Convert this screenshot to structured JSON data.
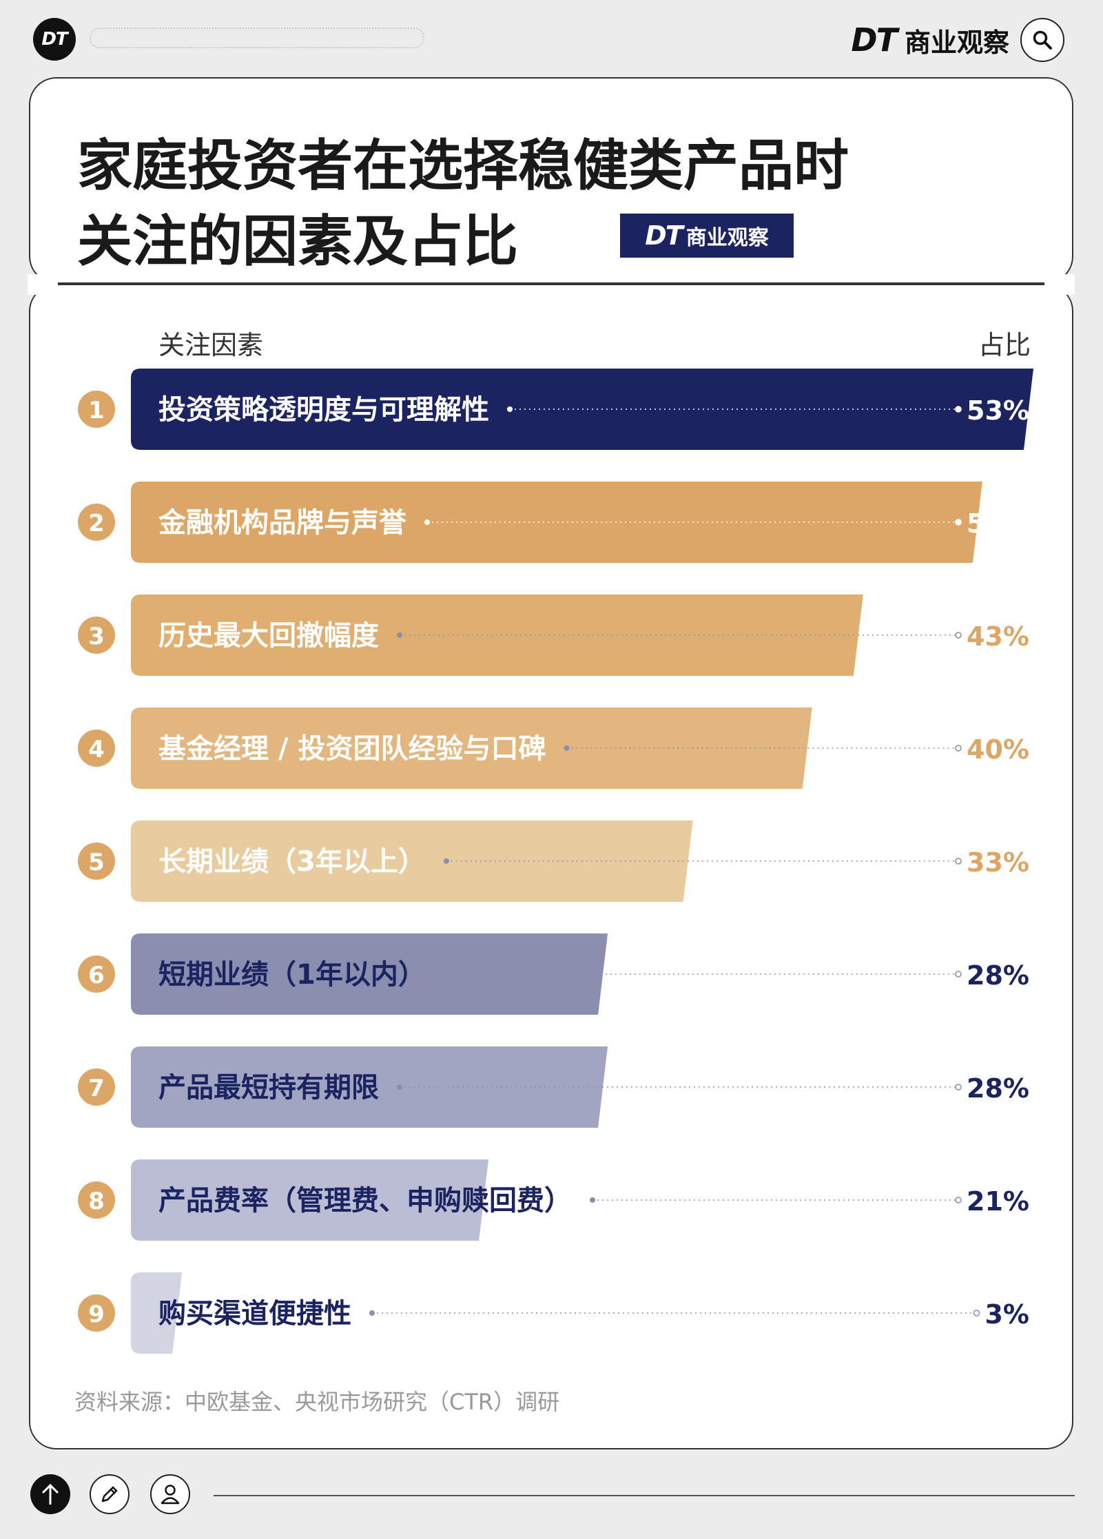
{
  "header": {
    "logo_text": "DT",
    "brand_mark": "DT",
    "brand_name": "商业观察",
    "icons": {
      "search": "search-icon",
      "logo": "dt-logo-icon"
    }
  },
  "title": {
    "line1": "家庭投资者在选择稳健类产品时",
    "line2": "关注的因素及占比",
    "badge_mark": "DT",
    "badge_name": "商业观察"
  },
  "chart_data": {
    "type": "bar",
    "orientation": "horizontal",
    "column_headers": {
      "label": "关注因素",
      "value": "占比"
    },
    "categories": [
      "投资策略透明度与可理解性",
      "金融机构品牌与声誉",
      "历史最大回撤幅度",
      "基金经理 / 投资团队经验与口碑",
      "长期业绩（3年以上）",
      "短期业绩（1年以内）",
      "产品最短持有期限",
      "产品费率（管理费、申购赎回费）",
      "购买渠道便捷性"
    ],
    "ranks": [
      "1",
      "2",
      "3",
      "4",
      "5",
      "6",
      "7",
      "8",
      "9"
    ],
    "values": [
      53,
      50,
      43,
      40,
      33,
      28,
      28,
      21,
      3
    ],
    "value_labels": [
      "53%",
      "50%",
      "43%",
      "40%",
      "33%",
      "28%",
      "28%",
      "21%",
      "3%"
    ],
    "bar_colors": [
      "#1c2361",
      "#dca766",
      "#dfae70",
      "#e2b67e",
      "#e8cb9f",
      "#8a8fb0",
      "#a1a5c2",
      "#babdd3",
      "#d2d4e2"
    ],
    "label_colors": [
      "#ffffff",
      "#ffffff",
      "#ffffff",
      "#ffffff",
      "#ffffff",
      "#1c2361",
      "#1c2361",
      "#1c2361",
      "#1c2361"
    ],
    "value_colors": [
      "#ffffff",
      "#ffffff",
      "#dca766",
      "#dca766",
      "#dca766",
      "#1c2361",
      "#1c2361",
      "#1c2361",
      "#1c2361"
    ],
    "xlim": [
      0,
      53
    ],
    "legend": "none",
    "grid": false
  },
  "source": "资料来源：中欧基金、央视市场研究（CTR）调研",
  "colors": {
    "navy": "#1c2361",
    "gold": "#dca766",
    "rank_circle": "#dca766"
  },
  "toolbar": {
    "icons": [
      "arrow-up-icon",
      "pencil-icon",
      "user-icon"
    ]
  }
}
